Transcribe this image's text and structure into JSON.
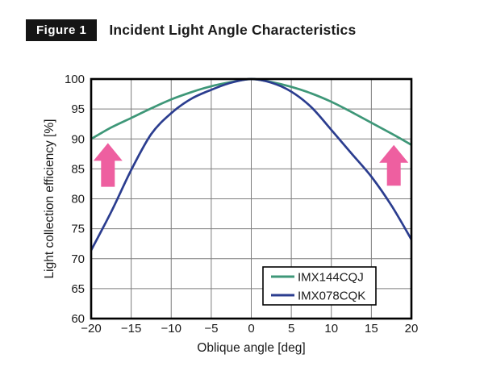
{
  "header": {
    "figure_label": "Figure 1",
    "title": "Incident Light Angle Characteristics"
  },
  "chart_data": {
    "type": "line",
    "title": "Incident Light Angle Characteristics",
    "xlabel": "Oblique angle [deg]",
    "ylabel": "Light collection efficiency [%]",
    "xlim": [
      -20,
      20
    ],
    "ylim": [
      60,
      100
    ],
    "x_ticks": [
      -20,
      -15,
      -10,
      -5,
      0,
      5,
      10,
      15,
      20
    ],
    "x_tick_labels": [
      "−20",
      "−15",
      "−10",
      "−5",
      "0",
      "5",
      "10",
      "15",
      "20"
    ],
    "y_ticks": [
      60,
      65,
      70,
      75,
      80,
      85,
      90,
      95,
      100
    ],
    "y_tick_labels": [
      "60",
      "65",
      "70",
      "75",
      "80",
      "85",
      "90",
      "95",
      "100"
    ],
    "grid": true,
    "grid_color": "#7d7d7d",
    "border_color": "#000000",
    "legend_position": "lower right",
    "x": [
      -20,
      -17.5,
      -15,
      -12.5,
      -10,
      -7.5,
      -5,
      -2.5,
      0,
      2.5,
      5,
      7.5,
      10,
      12.5,
      15,
      17.5,
      20
    ],
    "series": [
      {
        "name": "IMX144CQJ",
        "color": "#3E9778",
        "values": [
          90.0,
          91.9,
          93.5,
          95.1,
          96.6,
          97.8,
          98.8,
          99.5,
          100,
          99.5,
          98.7,
          97.6,
          96.2,
          94.5,
          92.7,
          90.9,
          89.0
        ]
      },
      {
        "name": "IMX078CQK",
        "color": "#2B3D8F",
        "values": [
          71.4,
          77.8,
          84.8,
          90.8,
          94.3,
          96.7,
          98.2,
          99.4,
          100,
          99.4,
          97.9,
          95.3,
          91.5,
          87.6,
          83.7,
          78.9,
          73.2
        ]
      }
    ],
    "annotations": [
      {
        "type": "up-arrow",
        "color": "#EE5FA0",
        "x": -17.9,
        "y_from": 82.0,
        "y_to": 89.3
      },
      {
        "type": "up-arrow",
        "color": "#EE5FA0",
        "x": 17.8,
        "y_from": 82.2,
        "y_to": 89.0
      }
    ]
  }
}
